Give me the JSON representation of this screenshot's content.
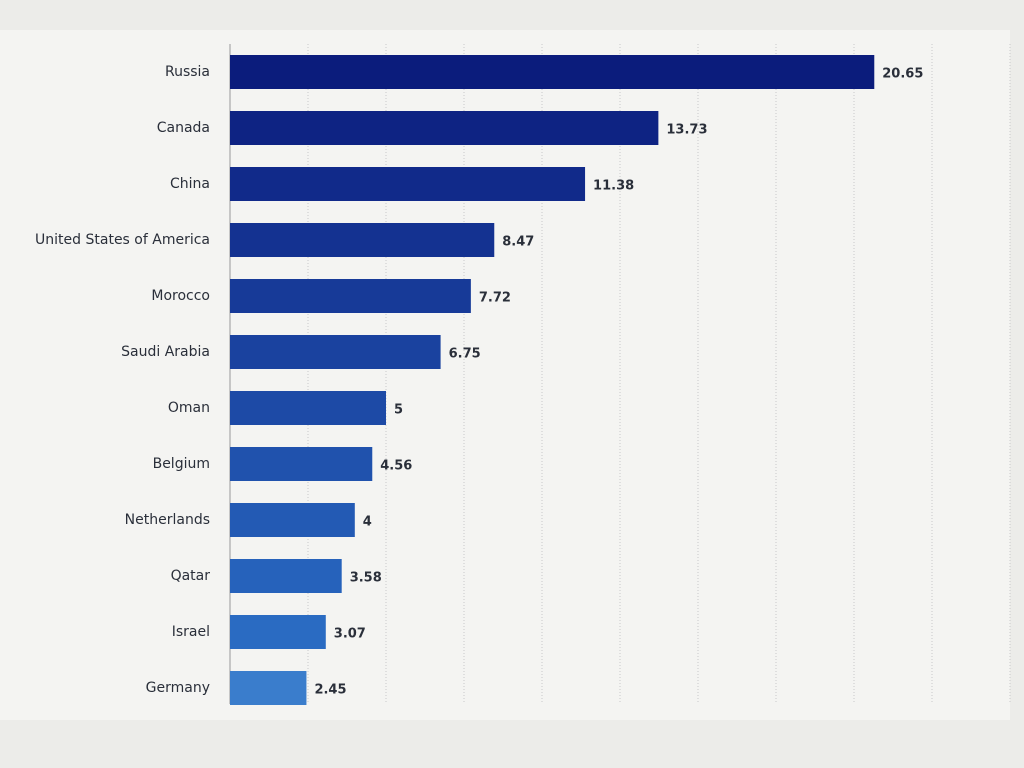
{
  "chart_data": {
    "type": "hbar",
    "categories": [
      "Russia",
      "Canada",
      "China",
      "United States of America",
      "Morocco",
      "Saudi Arabia",
      "Oman",
      "Belgium",
      "Netherlands",
      "Qatar",
      "Israel",
      "Germany"
    ],
    "values": [
      20.65,
      13.73,
      11.38,
      8.47,
      7.72,
      6.75,
      5,
      4.56,
      4,
      3.58,
      3.07,
      2.45
    ],
    "colors": [
      "#0b1c7c",
      "#0e2383",
      "#112a8a",
      "#143291",
      "#173a98",
      "#1a429f",
      "#1d4aa6",
      "#2052ad",
      "#235ab4",
      "#2662bb",
      "#2a6bc2",
      "#3a7dcc"
    ],
    "xlim": [
      0,
      25
    ],
    "xticks": [
      0,
      2.5,
      5,
      7.5,
      10,
      12.5,
      15,
      17.5,
      20,
      22.5,
      25
    ],
    "grid": true
  }
}
